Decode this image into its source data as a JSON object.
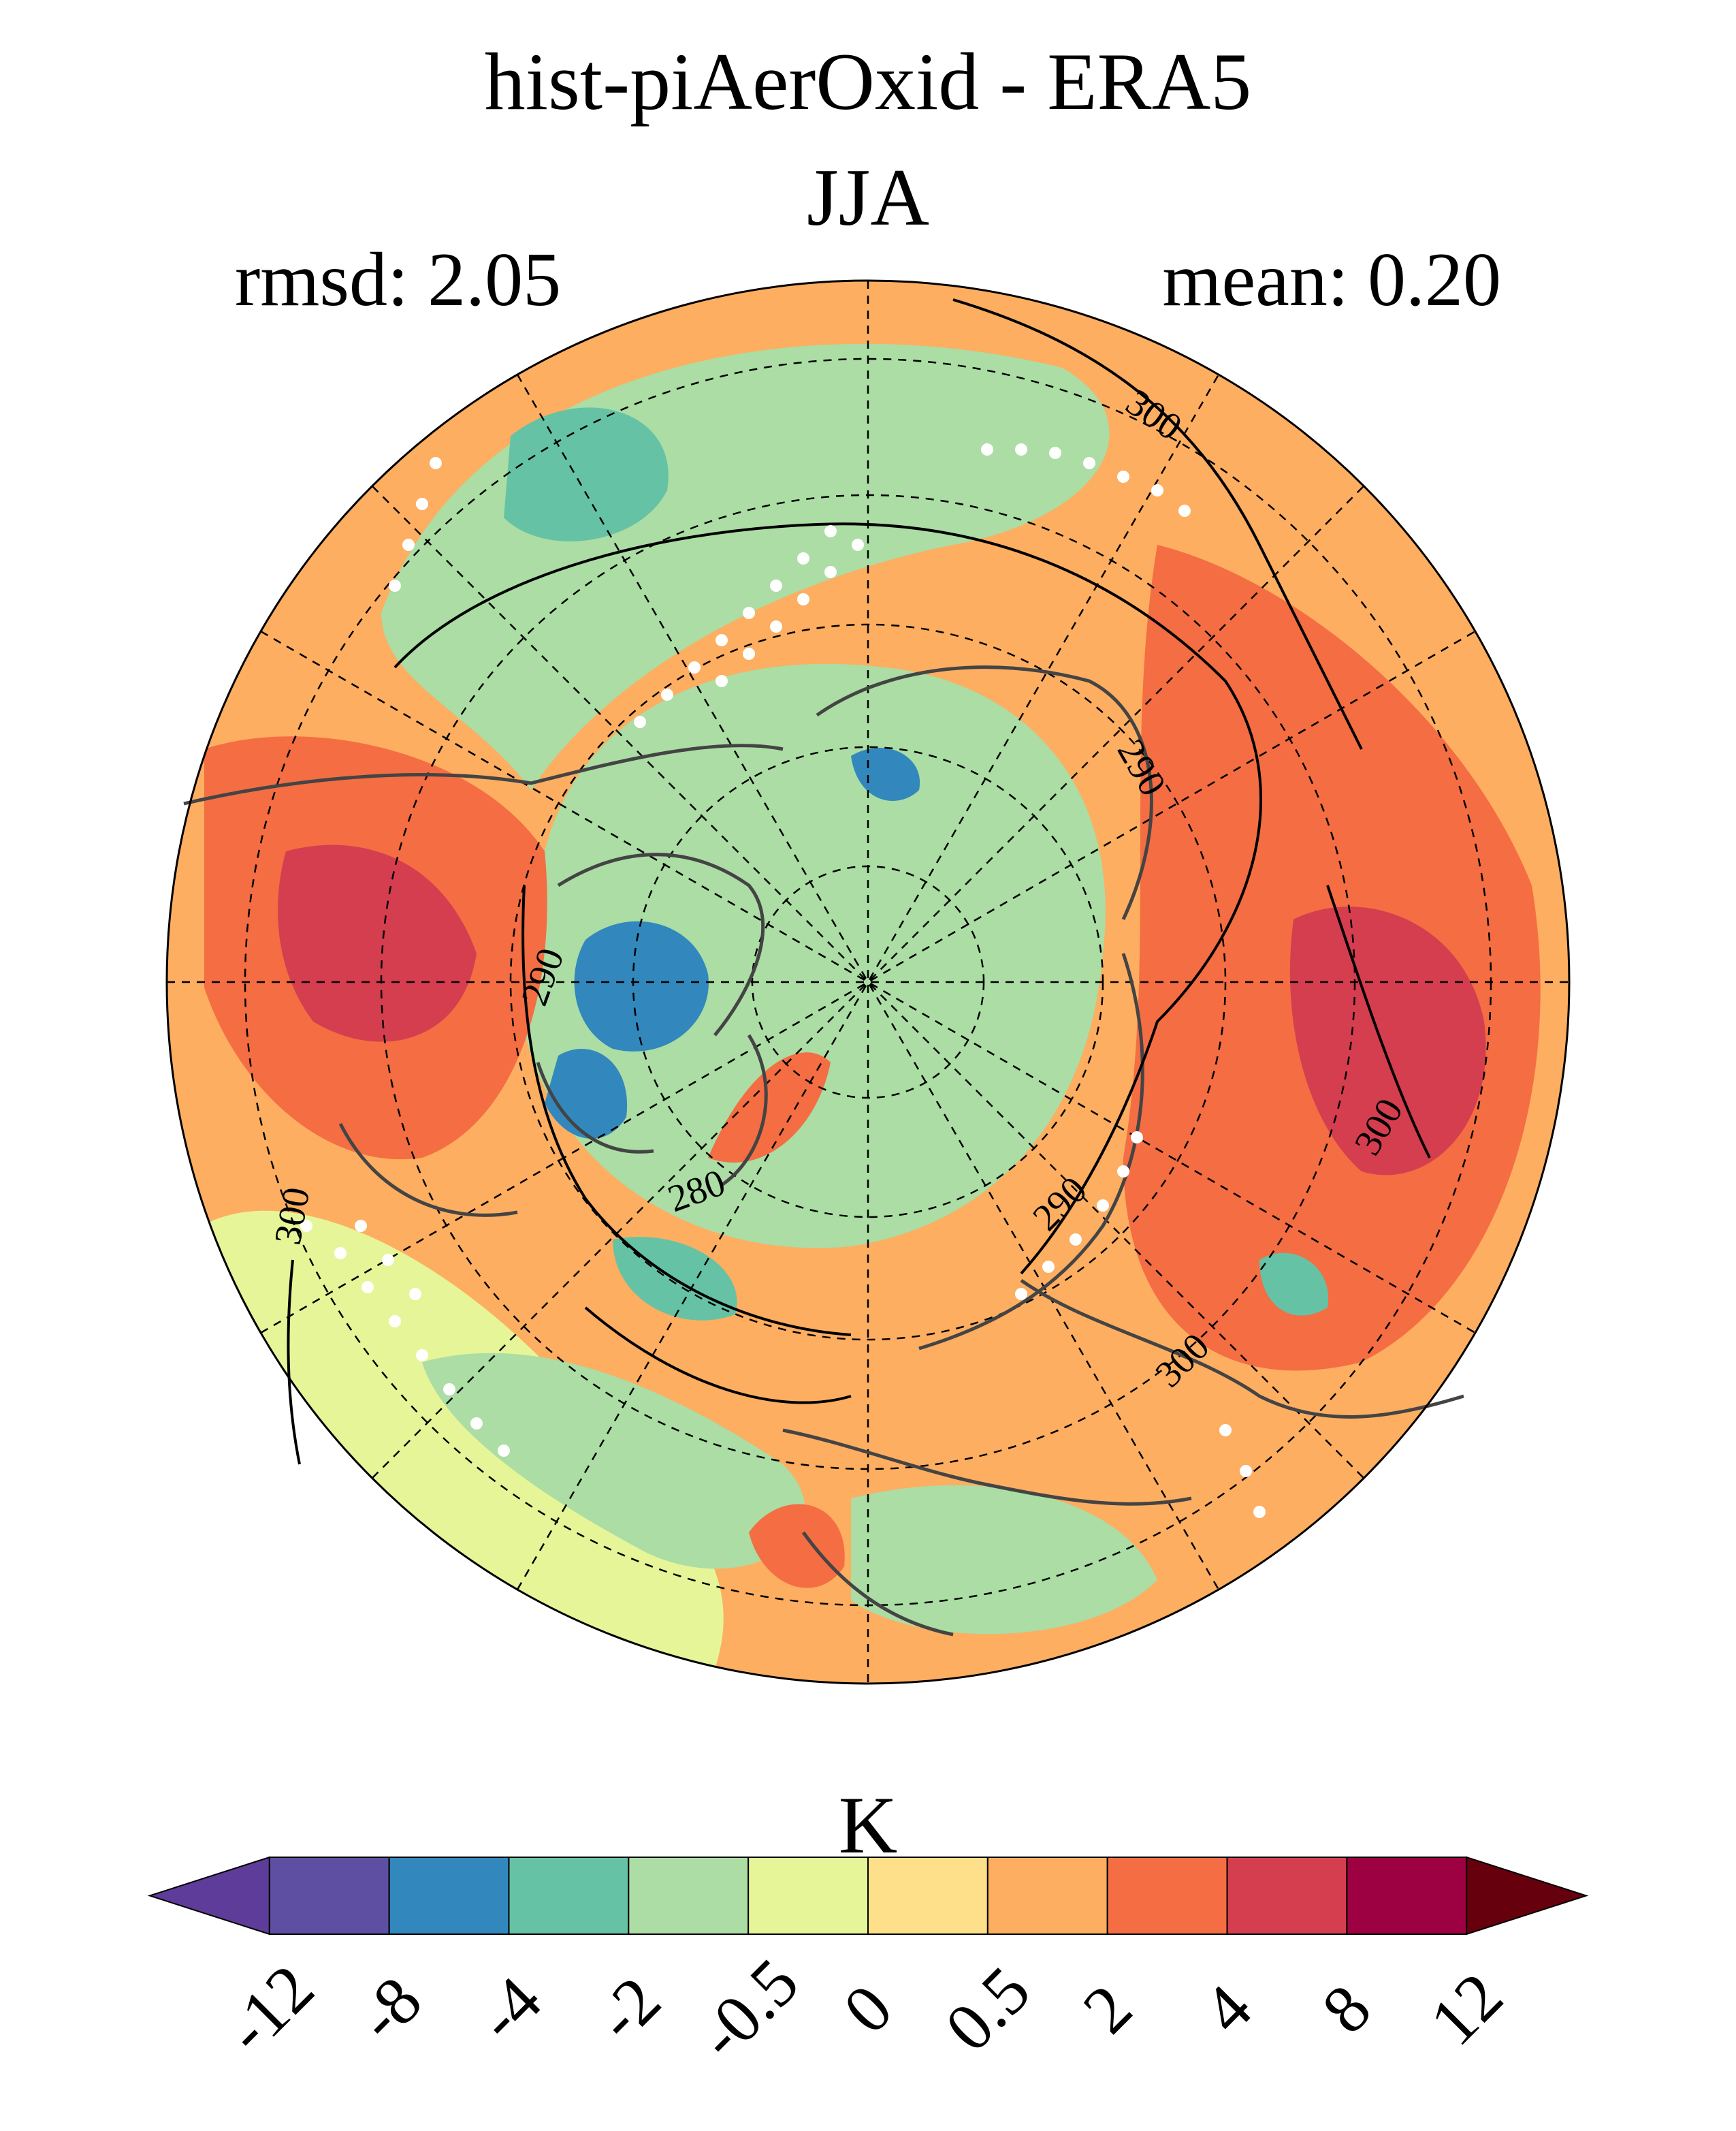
{
  "title": "hist-piAerOxid - ERA5",
  "season": "JJA",
  "stats": {
    "rmsd": "rmsd: 2.05",
    "mean": "mean: 0.20"
  },
  "map": {
    "projection": "north-polar-stereographic",
    "contour_labels": [
      "300",
      "290",
      "290",
      "290",
      "300",
      "280",
      "290",
      "290",
      "300",
      "300"
    ]
  },
  "colorbar": {
    "unit": "K",
    "ticks": [
      "-12",
      "-8",
      "-4",
      "-2",
      "-0.5",
      "0",
      "0.5",
      "2",
      "4",
      "8",
      "12"
    ],
    "colors": [
      "#5e3c99",
      "#5e4fa2",
      "#3288bd",
      "#66c2a5",
      "#abdda4",
      "#e6f598",
      "#fee08b",
      "#fdae61",
      "#f46d43",
      "#d53e4f",
      "#9e0142",
      "#67000d"
    ]
  },
  "colors": {
    "neutral": "#abdda4",
    "warm": "#f46d43",
    "cold": "#3288bd"
  }
}
